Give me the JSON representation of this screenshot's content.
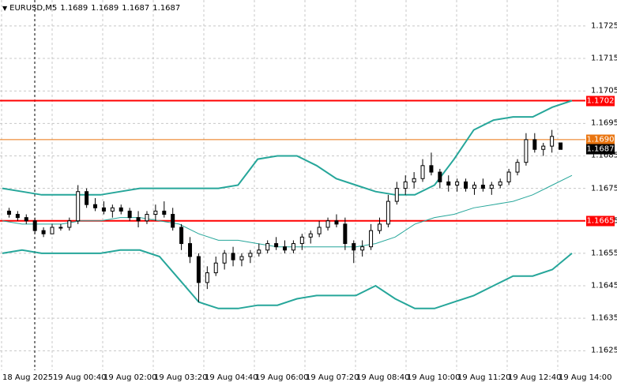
{
  "header": {
    "symbol": "EURUSD,M5",
    "open": "1.1689",
    "high": "1.1689",
    "low": "1.1687",
    "close": "1.1687",
    "menu_icon": "triangle-down-icon"
  },
  "colors": {
    "background": "#ffffff",
    "grid": "#c8c8c8",
    "candle": "#000000",
    "bollinger": "#26a69a",
    "resistance": "#ff0000",
    "level": "#e9740f"
  },
  "price_axis": {
    "ticks": [
      "1.1725",
      "1.1715",
      "1.1705",
      "1.1695",
      "1.1685",
      "1.1675",
      "1.1665",
      "1.1655",
      "1.1645",
      "1.1635",
      "1.1625"
    ]
  },
  "price_tags": {
    "upper_level": "1.1702",
    "mid_level": "1.1690",
    "current": "1.1687",
    "lower_level": "1.1665"
  },
  "time_axis": {
    "labels": [
      "18 Aug 2025",
      "19 Aug 00:40",
      "19 Aug 02:00",
      "19 Aug 03:20",
      "19 Aug 04:40",
      "19 Aug 06:00",
      "19 Aug 07:20",
      "19 Aug 08:40",
      "19 Aug 10:00",
      "19 Aug 11:20",
      "19 Aug 12:40",
      "19 Aug 14:00"
    ]
  },
  "chart_data": {
    "type": "candlestick",
    "symbol": "EURUSD",
    "timeframe": "M5",
    "y_range": [
      1.1619,
      1.1733
    ],
    "horizontal_lines": [
      {
        "price": 1.1702,
        "color": "#ff0000"
      },
      {
        "price": 1.169,
        "color": "#e9740f"
      },
      {
        "price": 1.1665,
        "color": "#ff0000"
      }
    ],
    "bollinger_upper": [
      1.1675,
      1.1674,
      1.1673,
      1.1673,
      1.1673,
      1.1673,
      1.1674,
      1.1675,
      1.1675,
      1.1675,
      1.1675,
      1.1675,
      1.1676,
      1.1684,
      1.1685,
      1.1685,
      1.1682,
      1.1678,
      1.1676,
      1.1674,
      1.1673,
      1.1673,
      1.1676,
      1.1684,
      1.1693,
      1.1696,
      1.1697,
      1.1697,
      1.17,
      1.1702
    ],
    "bollinger_middle": [
      1.1665,
      1.1664,
      1.1664,
      1.1664,
      1.1665,
      1.1665,
      1.1666,
      1.1666,
      1.1665,
      1.1664,
      1.1661,
      1.1659,
      1.1659,
      1.1658,
      1.1657,
      1.1657,
      1.1657,
      1.1657,
      1.1657,
      1.1658,
      1.166,
      1.1664,
      1.1666,
      1.1667,
      1.1669,
      1.167,
      1.1671,
      1.1673,
      1.1676,
      1.1679
    ],
    "bollinger_lower": [
      1.1655,
      1.1656,
      1.1655,
      1.1655,
      1.1655,
      1.1655,
      1.1656,
      1.1656,
      1.1654,
      1.1647,
      1.164,
      1.1638,
      1.1638,
      1.1639,
      1.1639,
      1.1641,
      1.1642,
      1.1642,
      1.1642,
      1.1645,
      1.1641,
      1.1638,
      1.1638,
      1.164,
      1.1642,
      1.1645,
      1.1648,
      1.1648,
      1.165,
      1.1655
    ],
    "candles": [
      {
        "o": 1.1668,
        "h": 1.1669,
        "l": 1.1666,
        "c": 1.1667
      },
      {
        "o": 1.1667,
        "h": 1.1668,
        "l": 1.1665,
        "c": 1.1666
      },
      {
        "o": 1.1666,
        "h": 1.1667,
        "l": 1.1664,
        "c": 1.1665
      },
      {
        "o": 1.1665,
        "h": 1.1666,
        "l": 1.1661,
        "c": 1.1662
      },
      {
        "o": 1.1662,
        "h": 1.1663,
        "l": 1.166,
        "c": 1.1661
      },
      {
        "o": 1.1661,
        "h": 1.1664,
        "l": 1.1661,
        "c": 1.1663
      },
      {
        "o": 1.1663,
        "h": 1.1664,
        "l": 1.1662,
        "c": 1.1663
      },
      {
        "o": 1.1663,
        "h": 1.1666,
        "l": 1.1662,
        "c": 1.1665
      },
      {
        "o": 1.1665,
        "h": 1.1676,
        "l": 1.1664,
        "c": 1.1674
      },
      {
        "o": 1.1674,
        "h": 1.1675,
        "l": 1.1669,
        "c": 1.167
      },
      {
        "o": 1.167,
        "h": 1.1672,
        "l": 1.1668,
        "c": 1.1669
      },
      {
        "o": 1.1669,
        "h": 1.1671,
        "l": 1.1667,
        "c": 1.1668
      },
      {
        "o": 1.1668,
        "h": 1.167,
        "l": 1.1666,
        "c": 1.1669
      },
      {
        "o": 1.1669,
        "h": 1.167,
        "l": 1.1667,
        "c": 1.1668
      },
      {
        "o": 1.1668,
        "h": 1.1669,
        "l": 1.1665,
        "c": 1.1666
      },
      {
        "o": 1.1666,
        "h": 1.1668,
        "l": 1.1663,
        "c": 1.1665
      },
      {
        "o": 1.1665,
        "h": 1.1668,
        "l": 1.1664,
        "c": 1.1667
      },
      {
        "o": 1.1667,
        "h": 1.167,
        "l": 1.1665,
        "c": 1.1668
      },
      {
        "o": 1.1668,
        "h": 1.1671,
        "l": 1.1666,
        "c": 1.1667
      },
      {
        "o": 1.1667,
        "h": 1.1669,
        "l": 1.1662,
        "c": 1.1663
      },
      {
        "o": 1.1663,
        "h": 1.1664,
        "l": 1.1656,
        "c": 1.1658
      },
      {
        "o": 1.1658,
        "h": 1.166,
        "l": 1.1652,
        "c": 1.1654
      },
      {
        "o": 1.1654,
        "h": 1.1655,
        "l": 1.164,
        "c": 1.1646
      },
      {
        "o": 1.1646,
        "h": 1.1651,
        "l": 1.1644,
        "c": 1.1649
      },
      {
        "o": 1.1649,
        "h": 1.1654,
        "l": 1.1648,
        "c": 1.1652
      },
      {
        "o": 1.1652,
        "h": 1.1656,
        "l": 1.165,
        "c": 1.1655
      },
      {
        "o": 1.1655,
        "h": 1.1657,
        "l": 1.1651,
        "c": 1.1653
      },
      {
        "o": 1.1653,
        "h": 1.1655,
        "l": 1.1651,
        "c": 1.1654
      },
      {
        "o": 1.1654,
        "h": 1.1656,
        "l": 1.1652,
        "c": 1.1655
      },
      {
        "o": 1.1655,
        "h": 1.1658,
        "l": 1.1654,
        "c": 1.1656
      },
      {
        "o": 1.1656,
        "h": 1.1659,
        "l": 1.1655,
        "c": 1.1658
      },
      {
        "o": 1.1658,
        "h": 1.166,
        "l": 1.1656,
        "c": 1.1657
      },
      {
        "o": 1.1657,
        "h": 1.1659,
        "l": 1.1655,
        "c": 1.1656
      },
      {
        "o": 1.1656,
        "h": 1.1659,
        "l": 1.1655,
        "c": 1.1658
      },
      {
        "o": 1.1658,
        "h": 1.1661,
        "l": 1.1656,
        "c": 1.166
      },
      {
        "o": 1.166,
        "h": 1.1662,
        "l": 1.1658,
        "c": 1.1661
      },
      {
        "o": 1.1661,
        "h": 1.1665,
        "l": 1.166,
        "c": 1.1663
      },
      {
        "o": 1.1663,
        "h": 1.1666,
        "l": 1.1662,
        "c": 1.1665
      },
      {
        "o": 1.1665,
        "h": 1.1667,
        "l": 1.1663,
        "c": 1.1664
      },
      {
        "o": 1.1664,
        "h": 1.1666,
        "l": 1.1656,
        "c": 1.1658
      },
      {
        "o": 1.1658,
        "h": 1.1659,
        "l": 1.1652,
        "c": 1.1656
      },
      {
        "o": 1.1656,
        "h": 1.1659,
        "l": 1.1654,
        "c": 1.1657
      },
      {
        "o": 1.1657,
        "h": 1.1664,
        "l": 1.1656,
        "c": 1.1662
      },
      {
        "o": 1.1662,
        "h": 1.1666,
        "l": 1.1661,
        "c": 1.1664
      },
      {
        "o": 1.1664,
        "h": 1.1673,
        "l": 1.1663,
        "c": 1.1671
      },
      {
        "o": 1.1671,
        "h": 1.1677,
        "l": 1.167,
        "c": 1.1675
      },
      {
        "o": 1.1675,
        "h": 1.1679,
        "l": 1.1673,
        "c": 1.1677
      },
      {
        "o": 1.1677,
        "h": 1.168,
        "l": 1.1675,
        "c": 1.1678
      },
      {
        "o": 1.1678,
        "h": 1.1684,
        "l": 1.1677,
        "c": 1.1682
      },
      {
        "o": 1.1682,
        "h": 1.1686,
        "l": 1.1679,
        "c": 1.168
      },
      {
        "o": 1.168,
        "h": 1.1681,
        "l": 1.1675,
        "c": 1.1677
      },
      {
        "o": 1.1677,
        "h": 1.1679,
        "l": 1.1674,
        "c": 1.1676
      },
      {
        "o": 1.1676,
        "h": 1.1678,
        "l": 1.1674,
        "c": 1.1677
      },
      {
        "o": 1.1677,
        "h": 1.1678,
        "l": 1.1674,
        "c": 1.1675
      },
      {
        "o": 1.1675,
        "h": 1.1677,
        "l": 1.1673,
        "c": 1.1676
      },
      {
        "o": 1.1676,
        "h": 1.1678,
        "l": 1.1674,
        "c": 1.1675
      },
      {
        "o": 1.1675,
        "h": 1.1677,
        "l": 1.1673,
        "c": 1.1676
      },
      {
        "o": 1.1676,
        "h": 1.1678,
        "l": 1.1675,
        "c": 1.1677
      },
      {
        "o": 1.1677,
        "h": 1.1681,
        "l": 1.1676,
        "c": 1.168
      },
      {
        "o": 1.168,
        "h": 1.1684,
        "l": 1.1679,
        "c": 1.1683
      },
      {
        "o": 1.1683,
        "h": 1.1692,
        "l": 1.1682,
        "c": 1.169
      },
      {
        "o": 1.169,
        "h": 1.1692,
        "l": 1.1686,
        "c": 1.1687
      },
      {
        "o": 1.1687,
        "h": 1.1689,
        "l": 1.1685,
        "c": 1.1688
      },
      {
        "o": 1.1688,
        "h": 1.1693,
        "l": 1.1686,
        "c": 1.1691
      },
      {
        "o": 1.1689,
        "h": 1.1689,
        "l": 1.1687,
        "c": 1.1687
      }
    ]
  }
}
